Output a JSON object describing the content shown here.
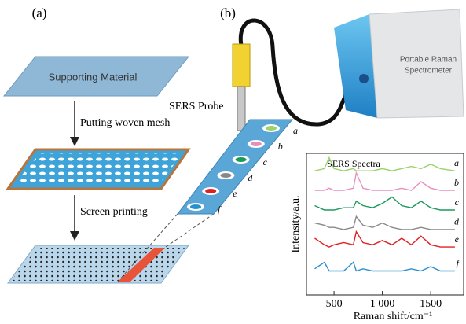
{
  "panels": {
    "a": "(a)",
    "b": "(b)"
  },
  "steps": {
    "supporting_material": "Supporting Material",
    "mesh": "Putting woven mesh",
    "printing": "Screen printing"
  },
  "probe": "SERS Probe",
  "spectrometer": {
    "line1": "Portable Raman",
    "line2": "Spectrometer"
  },
  "spectra": {
    "type": "line",
    "title": "SERS Spectra",
    "x_label": "Raman shift/cm⁻¹",
    "y_label": "Intensity/a.u.",
    "xlim": [
      215,
      1840
    ],
    "ylim": [
      0,
      6.5
    ],
    "xticks": [
      500,
      {
        "value": 1000,
        "label": "1 000"
      },
      1500
    ],
    "x": [
      300,
      400,
      450,
      500,
      600,
      700,
      730,
      800,
      900,
      1000,
      1100,
      1200,
      1300,
      1400,
      1500,
      1600,
      1750
    ],
    "series": [
      {
        "name": "a",
        "color": "#9bd36a",
        "values": [
          5.7,
          5.8,
          6.3,
          5.8,
          5.7,
          5.8,
          5.7,
          5.7,
          5.7,
          5.8,
          5.7,
          5.8,
          5.9,
          5.8,
          6.0,
          5.8,
          5.7
        ]
      },
      {
        "name": "b",
        "color": "#e58fc0",
        "values": [
          4.8,
          4.8,
          4.9,
          4.8,
          4.8,
          4.9,
          5.6,
          4.9,
          4.8,
          4.8,
          4.8,
          4.9,
          4.8,
          5.2,
          4.9,
          4.8,
          4.8
        ]
      },
      {
        "name": "c",
        "color": "#1a9a5a",
        "values": [
          4.1,
          3.9,
          3.9,
          3.9,
          4.0,
          4.0,
          4.3,
          4.1,
          4.0,
          4.2,
          4.5,
          4.1,
          4.0,
          4.3,
          4.0,
          3.9,
          3.9
        ]
      },
      {
        "name": "d",
        "color": "#888888",
        "values": [
          3.3,
          3.2,
          3.1,
          3.1,
          3.0,
          3.1,
          3.6,
          3.2,
          3.1,
          3.3,
          3.1,
          3.0,
          3.0,
          3.1,
          3.0,
          3.0,
          3.0
        ]
      },
      {
        "name": "e",
        "color": "#e02020",
        "values": [
          2.6,
          2.3,
          2.2,
          2.3,
          2.4,
          2.3,
          2.9,
          2.4,
          2.3,
          2.5,
          2.3,
          2.6,
          2.3,
          2.7,
          2.3,
          2.2,
          2.2
        ]
      },
      {
        "name": "f",
        "color": "#2a8fd0",
        "values": [
          1.2,
          1.5,
          1.1,
          1.1,
          1.1,
          1.5,
          1.1,
          1.2,
          1.1,
          1.1,
          1.1,
          1.1,
          1.2,
          1.1,
          1.3,
          1.1,
          1.1
        ]
      }
    ]
  }
}
